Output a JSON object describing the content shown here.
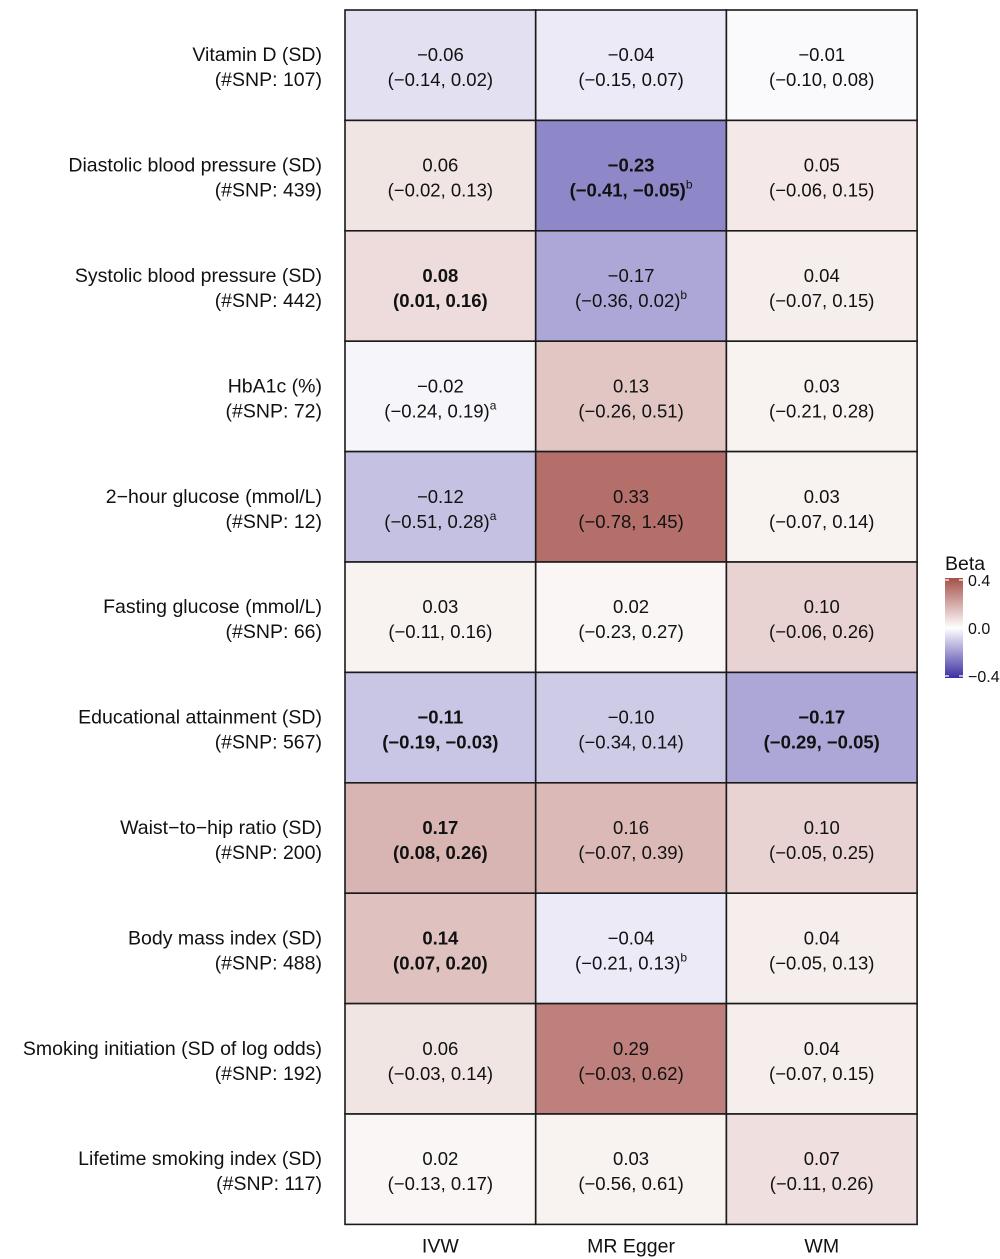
{
  "chart_data": {
    "type": "heatmap",
    "title": "",
    "xlabel": "",
    "ylabel": "",
    "columns": [
      "IVW",
      "MR Egger",
      "WM"
    ],
    "rows": [
      {
        "label": "Vitamin D (SD)",
        "snp": "(#SNP: 107)",
        "cells": [
          {
            "beta": -0.06,
            "value": "−0.06",
            "ci": "(−0.14, 0.02)",
            "bold": false,
            "note": ""
          },
          {
            "beta": -0.04,
            "value": "−0.04",
            "ci": "(−0.15, 0.07)",
            "bold": false,
            "note": ""
          },
          {
            "beta": -0.01,
            "value": "−0.01",
            "ci": "(−0.10, 0.08)",
            "bold": false,
            "note": ""
          }
        ]
      },
      {
        "label": "Diastolic blood pressure (SD)",
        "snp": "(#SNP: 439)",
        "cells": [
          {
            "beta": 0.06,
            "value": "0.06",
            "ci": "(−0.02, 0.13)",
            "bold": false,
            "note": ""
          },
          {
            "beta": -0.23,
            "value": "−0.23",
            "ci": "(−0.41, −0.05)",
            "bold": true,
            "note": "b"
          },
          {
            "beta": 0.05,
            "value": "0.05",
            "ci": "(−0.06, 0.15)",
            "bold": false,
            "note": ""
          }
        ]
      },
      {
        "label": "Systolic blood pressure (SD)",
        "snp": "(#SNP: 442)",
        "cells": [
          {
            "beta": 0.08,
            "value": "0.08",
            "ci": "(0.01, 0.16)",
            "bold": true,
            "note": ""
          },
          {
            "beta": -0.17,
            "value": "−0.17",
            "ci": "(−0.36, 0.02)",
            "bold": false,
            "note": "b"
          },
          {
            "beta": 0.04,
            "value": "0.04",
            "ci": "(−0.07, 0.15)",
            "bold": false,
            "note": ""
          }
        ]
      },
      {
        "label": "HbA1c (%)",
        "snp": "(#SNP: 72)",
        "cells": [
          {
            "beta": -0.02,
            "value": "−0.02",
            "ci": "(−0.24, 0.19)",
            "bold": false,
            "note": "a"
          },
          {
            "beta": 0.13,
            "value": "0.13",
            "ci": "(−0.26, 0.51)",
            "bold": false,
            "note": ""
          },
          {
            "beta": 0.03,
            "value": "0.03",
            "ci": "(−0.21, 0.28)",
            "bold": false,
            "note": ""
          }
        ]
      },
      {
        "label": "2−hour glucose (mmol/L)",
        "snp": "(#SNP: 12)",
        "cells": [
          {
            "beta": -0.12,
            "value": "−0.12",
            "ci": "(−0.51, 0.28)",
            "bold": false,
            "note": "a"
          },
          {
            "beta": 0.33,
            "value": "0.33",
            "ci": "(−0.78, 1.45)",
            "bold": false,
            "note": ""
          },
          {
            "beta": 0.03,
            "value": "0.03",
            "ci": "(−0.07, 0.14)",
            "bold": false,
            "note": ""
          }
        ]
      },
      {
        "label": "Fasting glucose (mmol/L)",
        "snp": "(#SNP: 66)",
        "cells": [
          {
            "beta": 0.03,
            "value": "0.03",
            "ci": "(−0.11, 0.16)",
            "bold": false,
            "note": ""
          },
          {
            "beta": 0.02,
            "value": "0.02",
            "ci": "(−0.23, 0.27)",
            "bold": false,
            "note": ""
          },
          {
            "beta": 0.1,
            "value": "0.10",
            "ci": "(−0.06, 0.26)",
            "bold": false,
            "note": ""
          }
        ]
      },
      {
        "label": "Educational attainment (SD)",
        "snp": "(#SNP: 567)",
        "cells": [
          {
            "beta": -0.11,
            "value": "−0.11",
            "ci": "(−0.19, −0.03)",
            "bold": true,
            "note": ""
          },
          {
            "beta": -0.1,
            "value": "−0.10",
            "ci": "(−0.34, 0.14)",
            "bold": false,
            "note": ""
          },
          {
            "beta": -0.17,
            "value": "−0.17",
            "ci": "(−0.29, −0.05)",
            "bold": true,
            "note": ""
          }
        ]
      },
      {
        "label": "Waist−to−hip ratio (SD)",
        "snp": "(#SNP: 200)",
        "cells": [
          {
            "beta": 0.17,
            "value": "0.17",
            "ci": "(0.08, 0.26)",
            "bold": true,
            "note": ""
          },
          {
            "beta": 0.16,
            "value": "0.16",
            "ci": "(−0.07, 0.39)",
            "bold": false,
            "note": ""
          },
          {
            "beta": 0.1,
            "value": "0.10",
            "ci": "(−0.05, 0.25)",
            "bold": false,
            "note": ""
          }
        ]
      },
      {
        "label": "Body mass index (SD)",
        "snp": "(#SNP: 488)",
        "cells": [
          {
            "beta": 0.14,
            "value": "0.14",
            "ci": "(0.07, 0.20)",
            "bold": true,
            "note": ""
          },
          {
            "beta": -0.04,
            "value": "−0.04",
            "ci": "(−0.21, 0.13)",
            "bold": false,
            "note": "b"
          },
          {
            "beta": 0.04,
            "value": "0.04",
            "ci": "(−0.05, 0.13)",
            "bold": false,
            "note": ""
          }
        ]
      },
      {
        "label": "Smoking initiation (SD of log odds)",
        "snp": "(#SNP: 192)",
        "cells": [
          {
            "beta": 0.06,
            "value": "0.06",
            "ci": "(−0.03, 0.14)",
            "bold": false,
            "note": ""
          },
          {
            "beta": 0.29,
            "value": "0.29",
            "ci": "(−0.03, 0.62)",
            "bold": false,
            "note": ""
          },
          {
            "beta": 0.04,
            "value": "0.04",
            "ci": "(−0.07, 0.15)",
            "bold": false,
            "note": ""
          }
        ]
      },
      {
        "label": "Lifetime smoking index (SD)",
        "snp": "(#SNP: 117)",
        "cells": [
          {
            "beta": 0.02,
            "value": "0.02",
            "ci": "(−0.13, 0.17)",
            "bold": false,
            "note": ""
          },
          {
            "beta": 0.03,
            "value": "0.03",
            "ci": "(−0.56, 0.61)",
            "bold": false,
            "note": ""
          },
          {
            "beta": 0.07,
            "value": "0.07",
            "ci": "(−0.11, 0.26)",
            "bold": false,
            "note": ""
          }
        ]
      }
    ],
    "legend": {
      "title": "Beta",
      "placement": "right",
      "range": [
        -0.4,
        0.4
      ],
      "ticks": [
        0.4,
        0.0,
        -0.4
      ],
      "tick_labels": [
        "0.4",
        "0.0",
        "−0.4"
      ],
      "colors": {
        "low": "#3b2fa0",
        "mid": "#ffffff",
        "high": "#a4504a"
      }
    },
    "grid": false
  }
}
